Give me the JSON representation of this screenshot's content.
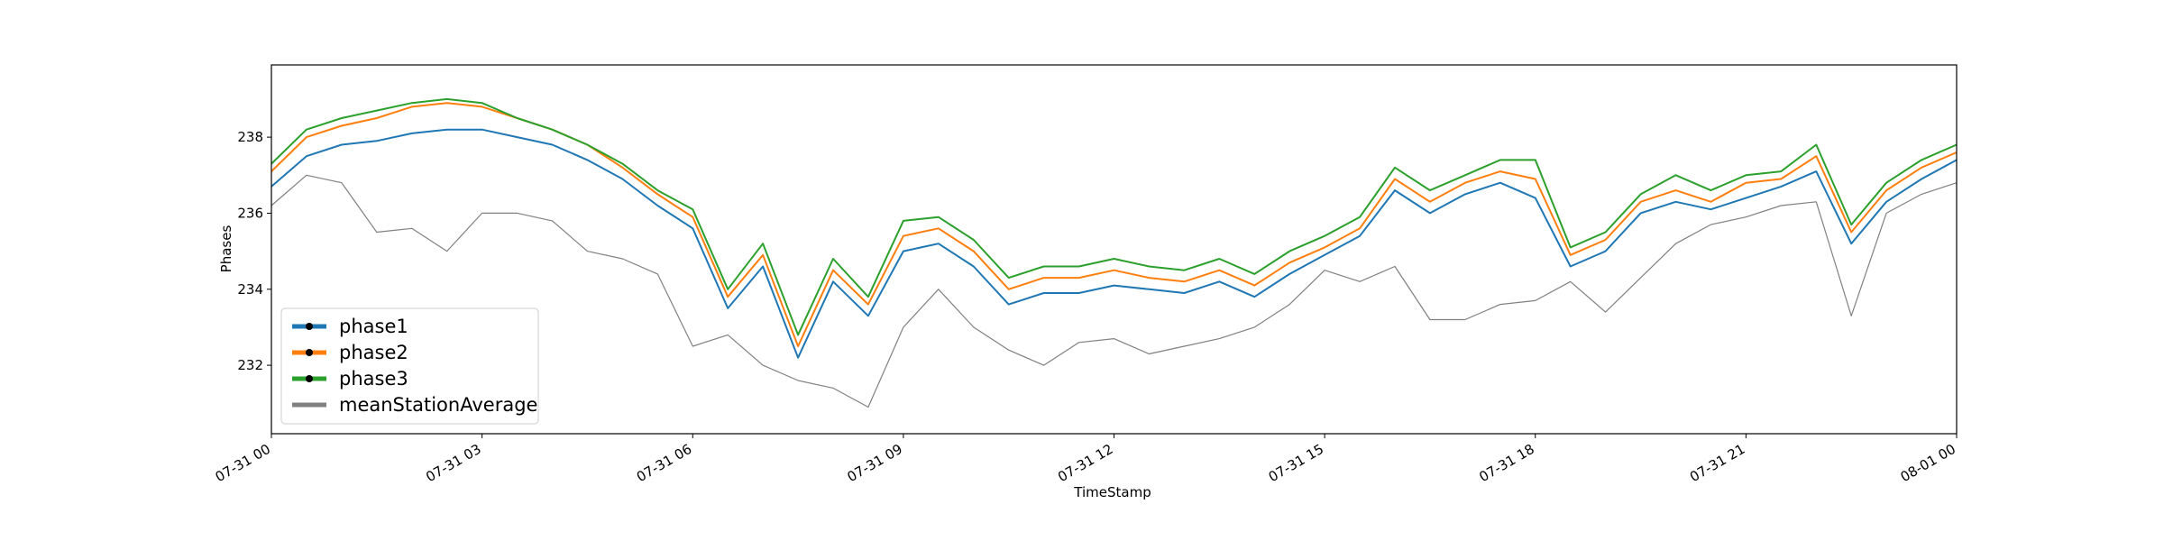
{
  "chart_data": {
    "type": "line",
    "x": [
      0,
      0.5,
      1,
      1.5,
      2,
      2.5,
      3,
      3.5,
      4,
      4.5,
      5,
      5.5,
      6,
      6.5,
      7,
      7.5,
      8,
      8.5,
      9,
      9.5,
      10,
      10.5,
      11,
      11.5,
      12,
      12.5,
      13,
      13.5,
      14,
      14.5,
      15,
      15.5,
      16,
      16.5,
      17,
      17.5,
      18,
      18.5,
      19,
      19.5,
      20,
      20.5,
      21,
      21.5,
      22,
      22.5,
      23,
      23.5,
      24
    ],
    "series": [
      {
        "name": "phase1",
        "color": "#1f77b4",
        "values": [
          236.7,
          237.5,
          237.8,
          237.9,
          238.1,
          238.2,
          238.2,
          238.0,
          237.8,
          237.4,
          236.9,
          236.2,
          235.6,
          233.5,
          234.6,
          232.2,
          234.2,
          233.3,
          235.0,
          235.2,
          234.6,
          233.6,
          233.9,
          233.9,
          234.1,
          234.0,
          233.9,
          234.2,
          233.8,
          234.4,
          234.9,
          235.4,
          236.6,
          236.0,
          236.5,
          236.8,
          236.4,
          234.6,
          235.0,
          236.0,
          236.3,
          236.1,
          236.4,
          236.7,
          237.1,
          235.2,
          236.3,
          236.9,
          237.4
        ]
      },
      {
        "name": "phase2",
        "color": "#ff7f0e",
        "values": [
          237.1,
          238.0,
          238.3,
          238.5,
          238.8,
          238.9,
          238.8,
          238.5,
          238.2,
          237.8,
          237.2,
          236.5,
          235.9,
          233.8,
          234.9,
          232.5,
          234.5,
          233.6,
          235.4,
          235.6,
          235.0,
          234.0,
          234.3,
          234.3,
          234.5,
          234.3,
          234.2,
          234.5,
          234.1,
          234.7,
          235.1,
          235.6,
          236.9,
          236.3,
          236.8,
          237.1,
          236.9,
          234.9,
          235.3,
          236.3,
          236.6,
          236.3,
          236.8,
          236.9,
          237.5,
          235.5,
          236.6,
          237.2,
          237.6
        ]
      },
      {
        "name": "phase3",
        "color": "#2ca02c",
        "values": [
          237.3,
          238.2,
          238.5,
          238.7,
          238.9,
          239.0,
          238.9,
          238.5,
          238.2,
          237.8,
          237.3,
          236.6,
          236.1,
          234.0,
          235.2,
          232.8,
          234.8,
          233.8,
          235.8,
          235.9,
          235.3,
          234.3,
          234.6,
          234.6,
          234.8,
          234.6,
          234.5,
          234.8,
          234.4,
          235.0,
          235.4,
          235.9,
          237.2,
          236.6,
          237.0,
          237.4,
          237.4,
          235.1,
          235.5,
          236.5,
          237.0,
          236.6,
          237.0,
          237.1,
          237.8,
          235.7,
          236.8,
          237.4,
          237.8
        ]
      },
      {
        "name": "meanStationAverage",
        "color": "#808080",
        "values": [
          236.2,
          237.0,
          236.8,
          235.5,
          235.6,
          235.0,
          236.0,
          236.0,
          235.8,
          235.0,
          234.8,
          234.4,
          232.5,
          232.8,
          232.0,
          231.6,
          231.4,
          230.9,
          233.0,
          234.0,
          233.0,
          232.4,
          232.0,
          232.6,
          232.7,
          232.3,
          232.5,
          232.7,
          233.0,
          233.6,
          234.5,
          234.2,
          234.6,
          233.2,
          233.2,
          233.6,
          233.7,
          234.2,
          233.4,
          234.3,
          235.2,
          235.7,
          235.9,
          236.2,
          236.3,
          233.3,
          236.0,
          236.5,
          236.8
        ]
      }
    ],
    "xlabel": "TimeStamp",
    "ylabel": "Phases",
    "xlim": [
      0,
      24
    ],
    "xticks": [
      {
        "value": 0,
        "label": "07-31 00"
      },
      {
        "value": 3,
        "label": "07-31 03"
      },
      {
        "value": 6,
        "label": "07-31 06"
      },
      {
        "value": 9,
        "label": "07-31 09"
      },
      {
        "value": 12,
        "label": "07-31 12"
      },
      {
        "value": 15,
        "label": "07-31 15"
      },
      {
        "value": 18,
        "label": "07-31 18"
      },
      {
        "value": 21,
        "label": "07-31 21"
      },
      {
        "value": 24,
        "label": "08-01 00"
      }
    ],
    "ylim": [
      230.2,
      239.9
    ],
    "yticks": [
      232,
      234,
      236,
      238
    ],
    "legend": "lower left"
  }
}
